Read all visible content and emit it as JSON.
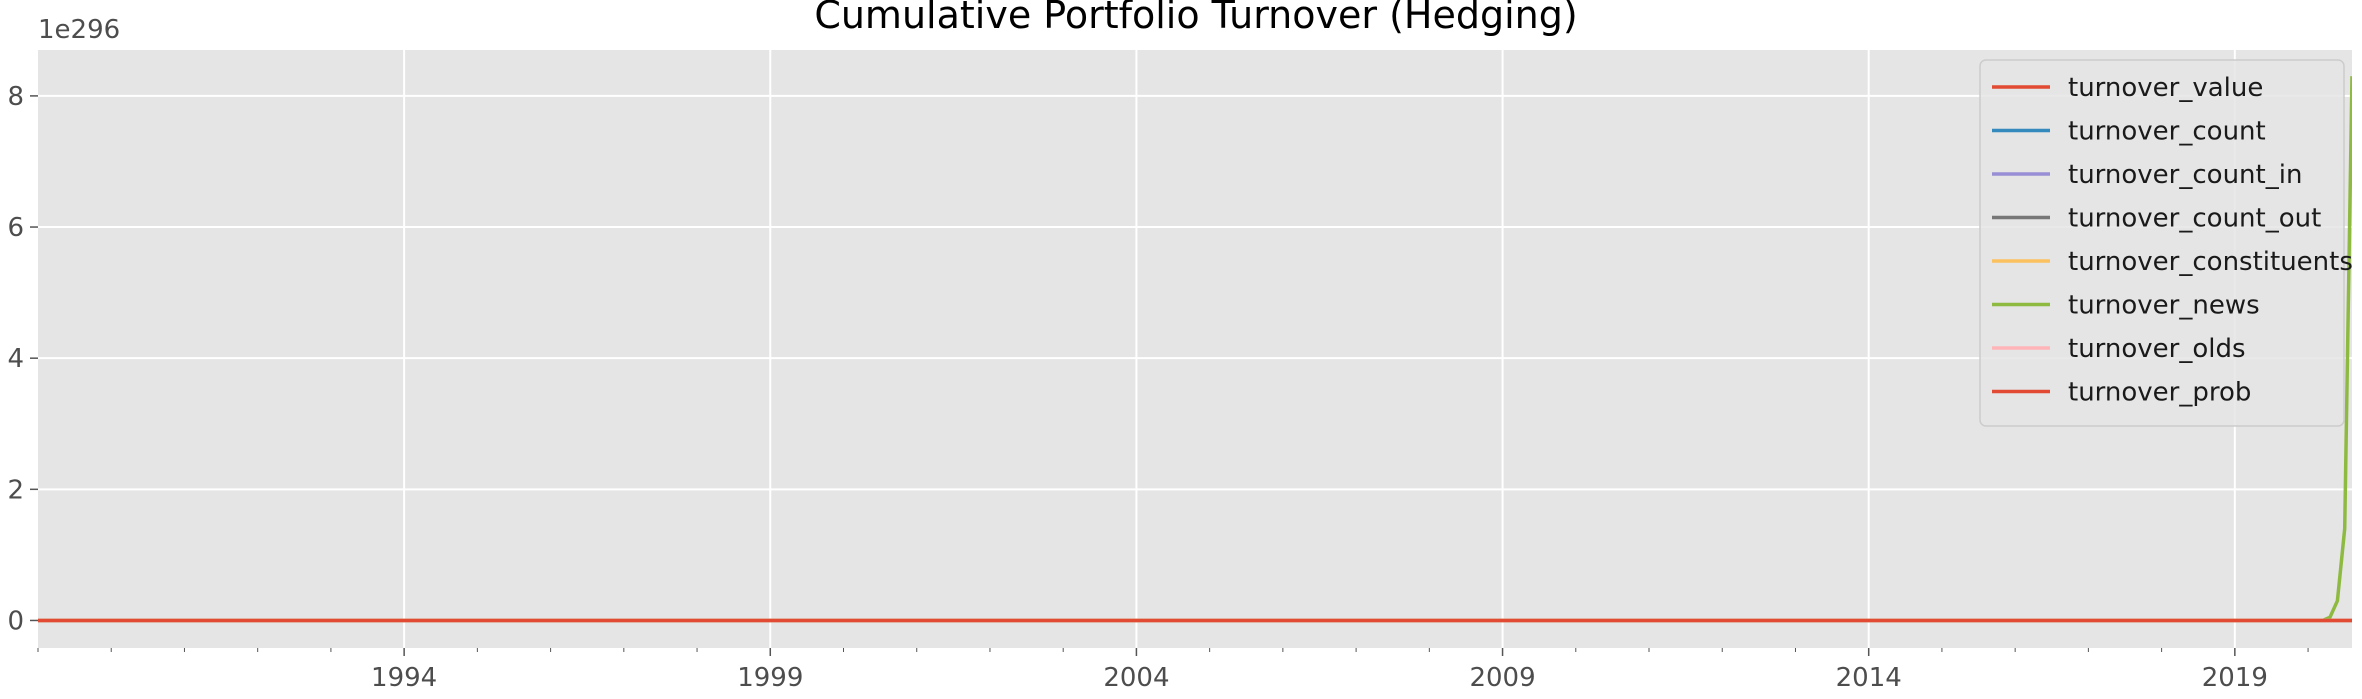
{
  "chart_data": {
    "type": "line",
    "title": "Cumulative Portfolio Turnover (Hedging)",
    "xlabel": "",
    "ylabel": "",
    "y_offset_label": "1e296",
    "xlim": [
      1989.0,
      2020.6
    ],
    "ylim": [
      -0.42,
      8.7
    ],
    "x_ticks": [
      1994,
      1999,
      2004,
      2009,
      2014,
      2019
    ],
    "x_tick_labels": [
      "1994",
      "1999",
      "2004",
      "2009",
      "2014",
      "2019"
    ],
    "y_ticks": [
      0,
      2,
      4,
      6,
      8
    ],
    "y_tick_labels": [
      "0",
      "2",
      "4",
      "6",
      "8"
    ],
    "grid": true,
    "legend_position": "top-right",
    "series": [
      {
        "name": "turnover_value",
        "color": "#E24A33",
        "x": [
          1989.0,
          2020.6
        ],
        "y": [
          0,
          0
        ]
      },
      {
        "name": "turnover_count",
        "color": "#348ABD",
        "x": [
          1989.0,
          2020.6
        ],
        "y": [
          0,
          0
        ]
      },
      {
        "name": "turnover_count_in",
        "color": "#988ED5",
        "x": [
          1989.0,
          2020.6
        ],
        "y": [
          0,
          0
        ]
      },
      {
        "name": "turnover_count_out",
        "color": "#777777",
        "x": [
          1989.0,
          2020.6
        ],
        "y": [
          0,
          0
        ]
      },
      {
        "name": "turnover_constituents",
        "color": "#FBC15E",
        "x": [
          1989.0,
          2020.6
        ],
        "y": [
          0,
          0
        ]
      },
      {
        "name": "turnover_news",
        "color": "#8EBA42",
        "x": [
          1989.0,
          2020.2,
          2020.3,
          2020.4,
          2020.5,
          2020.6
        ],
        "y": [
          0,
          0,
          0.05,
          0.3,
          1.4,
          8.3
        ]
      },
      {
        "name": "turnover_olds",
        "color": "#FFB5B8",
        "x": [
          1989.0,
          2020.6
        ],
        "y": [
          0,
          0
        ]
      },
      {
        "name": "turnover_prob",
        "color": "#E24A33",
        "x": [
          1989.0,
          2020.6
        ],
        "y": [
          0,
          0
        ]
      }
    ]
  }
}
